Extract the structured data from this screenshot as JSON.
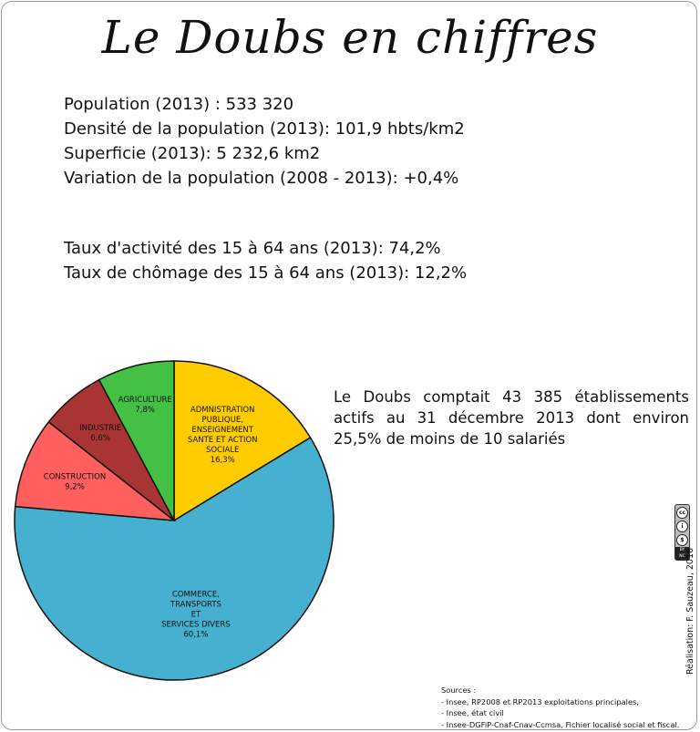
{
  "title": "Le Doubs en chiffres",
  "stats": [
    "Population (2013) : 533 320",
    "Densité de la population (2013): 101,9 hbts/km2",
    "Superficie (2013): 5 232,6 km2",
    "Variation de la population (2008 - 2013): +0,4%"
  ],
  "stats2": [
    "Taux d'activité des 15 à 64 ans (2013): 74,2%",
    "Taux de chômage des 15 à 64 ans (2013): 12,2%"
  ],
  "paragraph": "Le Doubs comptait 43 385 établissements actifs au 31 décembre 2013 dont environ 25,5% de moins de 10 salariés",
  "credit": "Réalisation: F. Sauzeau, 2016",
  "cc": {
    "cc": "cc",
    "by": "i",
    "nc": "$",
    "strip_top": "BY",
    "strip_bottom": "NC"
  },
  "sources": {
    "heading": "Sources :",
    "lines": [
      "- Insee, RP2008 et RP2013 exploitations principales,",
      "- Insee, état civil",
      "- Insee-DGFiP-Cnaf-Cnav-Ccmsa, Fichier localisé social et fiscal."
    ]
  },
  "chart_data": {
    "type": "pie",
    "title": "",
    "series": [
      {
        "label_lines": [
          "ADMNISTRATION",
          "PUBLIQUE,",
          "ENSEIGNEMENT",
          "SANTE ET ACTION",
          "SOCIALE",
          "16,3%"
        ],
        "value": 16.3,
        "color": "#ffcc00"
      },
      {
        "label_lines": [
          "COMMERCE,",
          "TRANSPORTS",
          "ET",
          "SERVICES DIVERS",
          "60,1%"
        ],
        "value": 60.1,
        "color": "#45b0cf"
      },
      {
        "label_lines": [
          "CONSTRUCTION",
          "9,2%"
        ],
        "value": 9.2,
        "color": "#ff5f5f"
      },
      {
        "label_lines": [
          "INDUSTRIE",
          "6,6%"
        ],
        "value": 6.6,
        "color": "#a93434"
      },
      {
        "label_lines": [
          "AGRICULTURE",
          "7,8%"
        ],
        "value": 7.8,
        "color": "#44c144"
      }
    ]
  }
}
